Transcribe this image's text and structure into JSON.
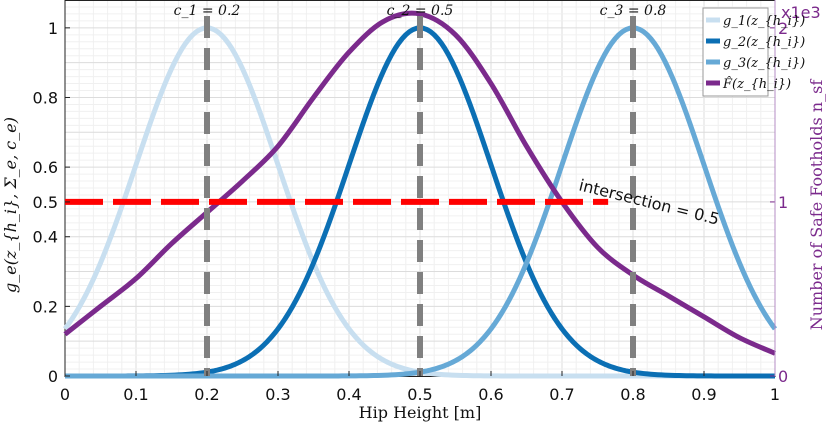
{
  "chart_data": {
    "type": "line",
    "xlabel": "Hip Height [m]",
    "ylabel": "g_e(z_{h_i}, Σ_e, c_e)",
    "y2label": "Number of Safe Footholds n_sf",
    "y2_multiplier": "x1e3",
    "xlim": [
      0,
      1
    ],
    "ylim": [
      0,
      1.08
    ],
    "y2lim": [
      0,
      2.16
    ],
    "xticks": [
      "0",
      "0.1",
      "0.2",
      "0.3",
      "0.4",
      "0.5",
      "0.6",
      "0.7",
      "0.8",
      "0.9",
      "1"
    ],
    "yticks": [
      "0",
      "0.2",
      "0.4",
      "0.5",
      "0.6",
      "0.8",
      "1"
    ],
    "y2ticks": [
      "0",
      "1",
      "2"
    ],
    "grid": true,
    "legend_position": "top-right",
    "gaussian_sigma": 0.1,
    "centers": [
      {
        "label": "c_1 = 0.2",
        "x": 0.2
      },
      {
        "label": "c_2 = 0.5",
        "x": 0.5
      },
      {
        "label": "c_3 = 0.8",
        "x": 0.8
      }
    ],
    "threshold": {
      "y": 0.5,
      "x_range": [
        0,
        0.765
      ],
      "annotation": "intersection = 0.5"
    },
    "series": [
      {
        "name": "g_1(z_{h_i})",
        "center": 0.2,
        "color": "#c8dff0"
      },
      {
        "name": "g_2(z_{h_i})",
        "center": 0.5,
        "color": "#0b6fb4"
      },
      {
        "name": "g_3(z_{h_i})",
        "center": 0.8,
        "color": "#66a9d6"
      },
      {
        "name": "F̂(z_{h_i})",
        "color": "#7b2a8c",
        "x": [
          0,
          0.05,
          0.1,
          0.15,
          0.2,
          0.25,
          0.3,
          0.35,
          0.4,
          0.45,
          0.5,
          0.55,
          0.6,
          0.65,
          0.7,
          0.75,
          0.8,
          0.85,
          0.9,
          0.95,
          1.0
        ],
        "y": [
          0.12,
          0.2,
          0.28,
          0.38,
          0.47,
          0.56,
          0.66,
          0.8,
          0.93,
          1.02,
          1.04,
          0.98,
          0.84,
          0.66,
          0.5,
          0.37,
          0.29,
          0.23,
          0.17,
          0.11,
          0.065
        ]
      }
    ]
  }
}
